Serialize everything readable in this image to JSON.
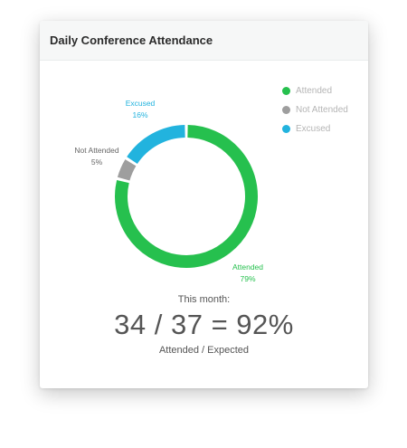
{
  "card": {
    "title": "Daily Conference Attendance"
  },
  "chart_data": {
    "type": "pie",
    "style": "donut",
    "categories": [
      "Attended",
      "Not Attended",
      "Excused"
    ],
    "values": [
      79,
      5,
      16
    ],
    "value_labels": [
      "79%",
      "5%",
      "16%"
    ],
    "colors": [
      "#26c04e",
      "#9e9e9e",
      "#22b3de"
    ],
    "legend": {
      "placement": "top-right",
      "entries": [
        {
          "label": "Attended",
          "color": "#26c04e"
        },
        {
          "label": "Not Attended",
          "color": "#9e9e9e"
        },
        {
          "label": "Excused",
          "color": "#22b3de"
        }
      ]
    }
  },
  "summary": {
    "heading": "This month:",
    "value": "34 / 37 = 92%",
    "caption": "Attended / Expected"
  }
}
